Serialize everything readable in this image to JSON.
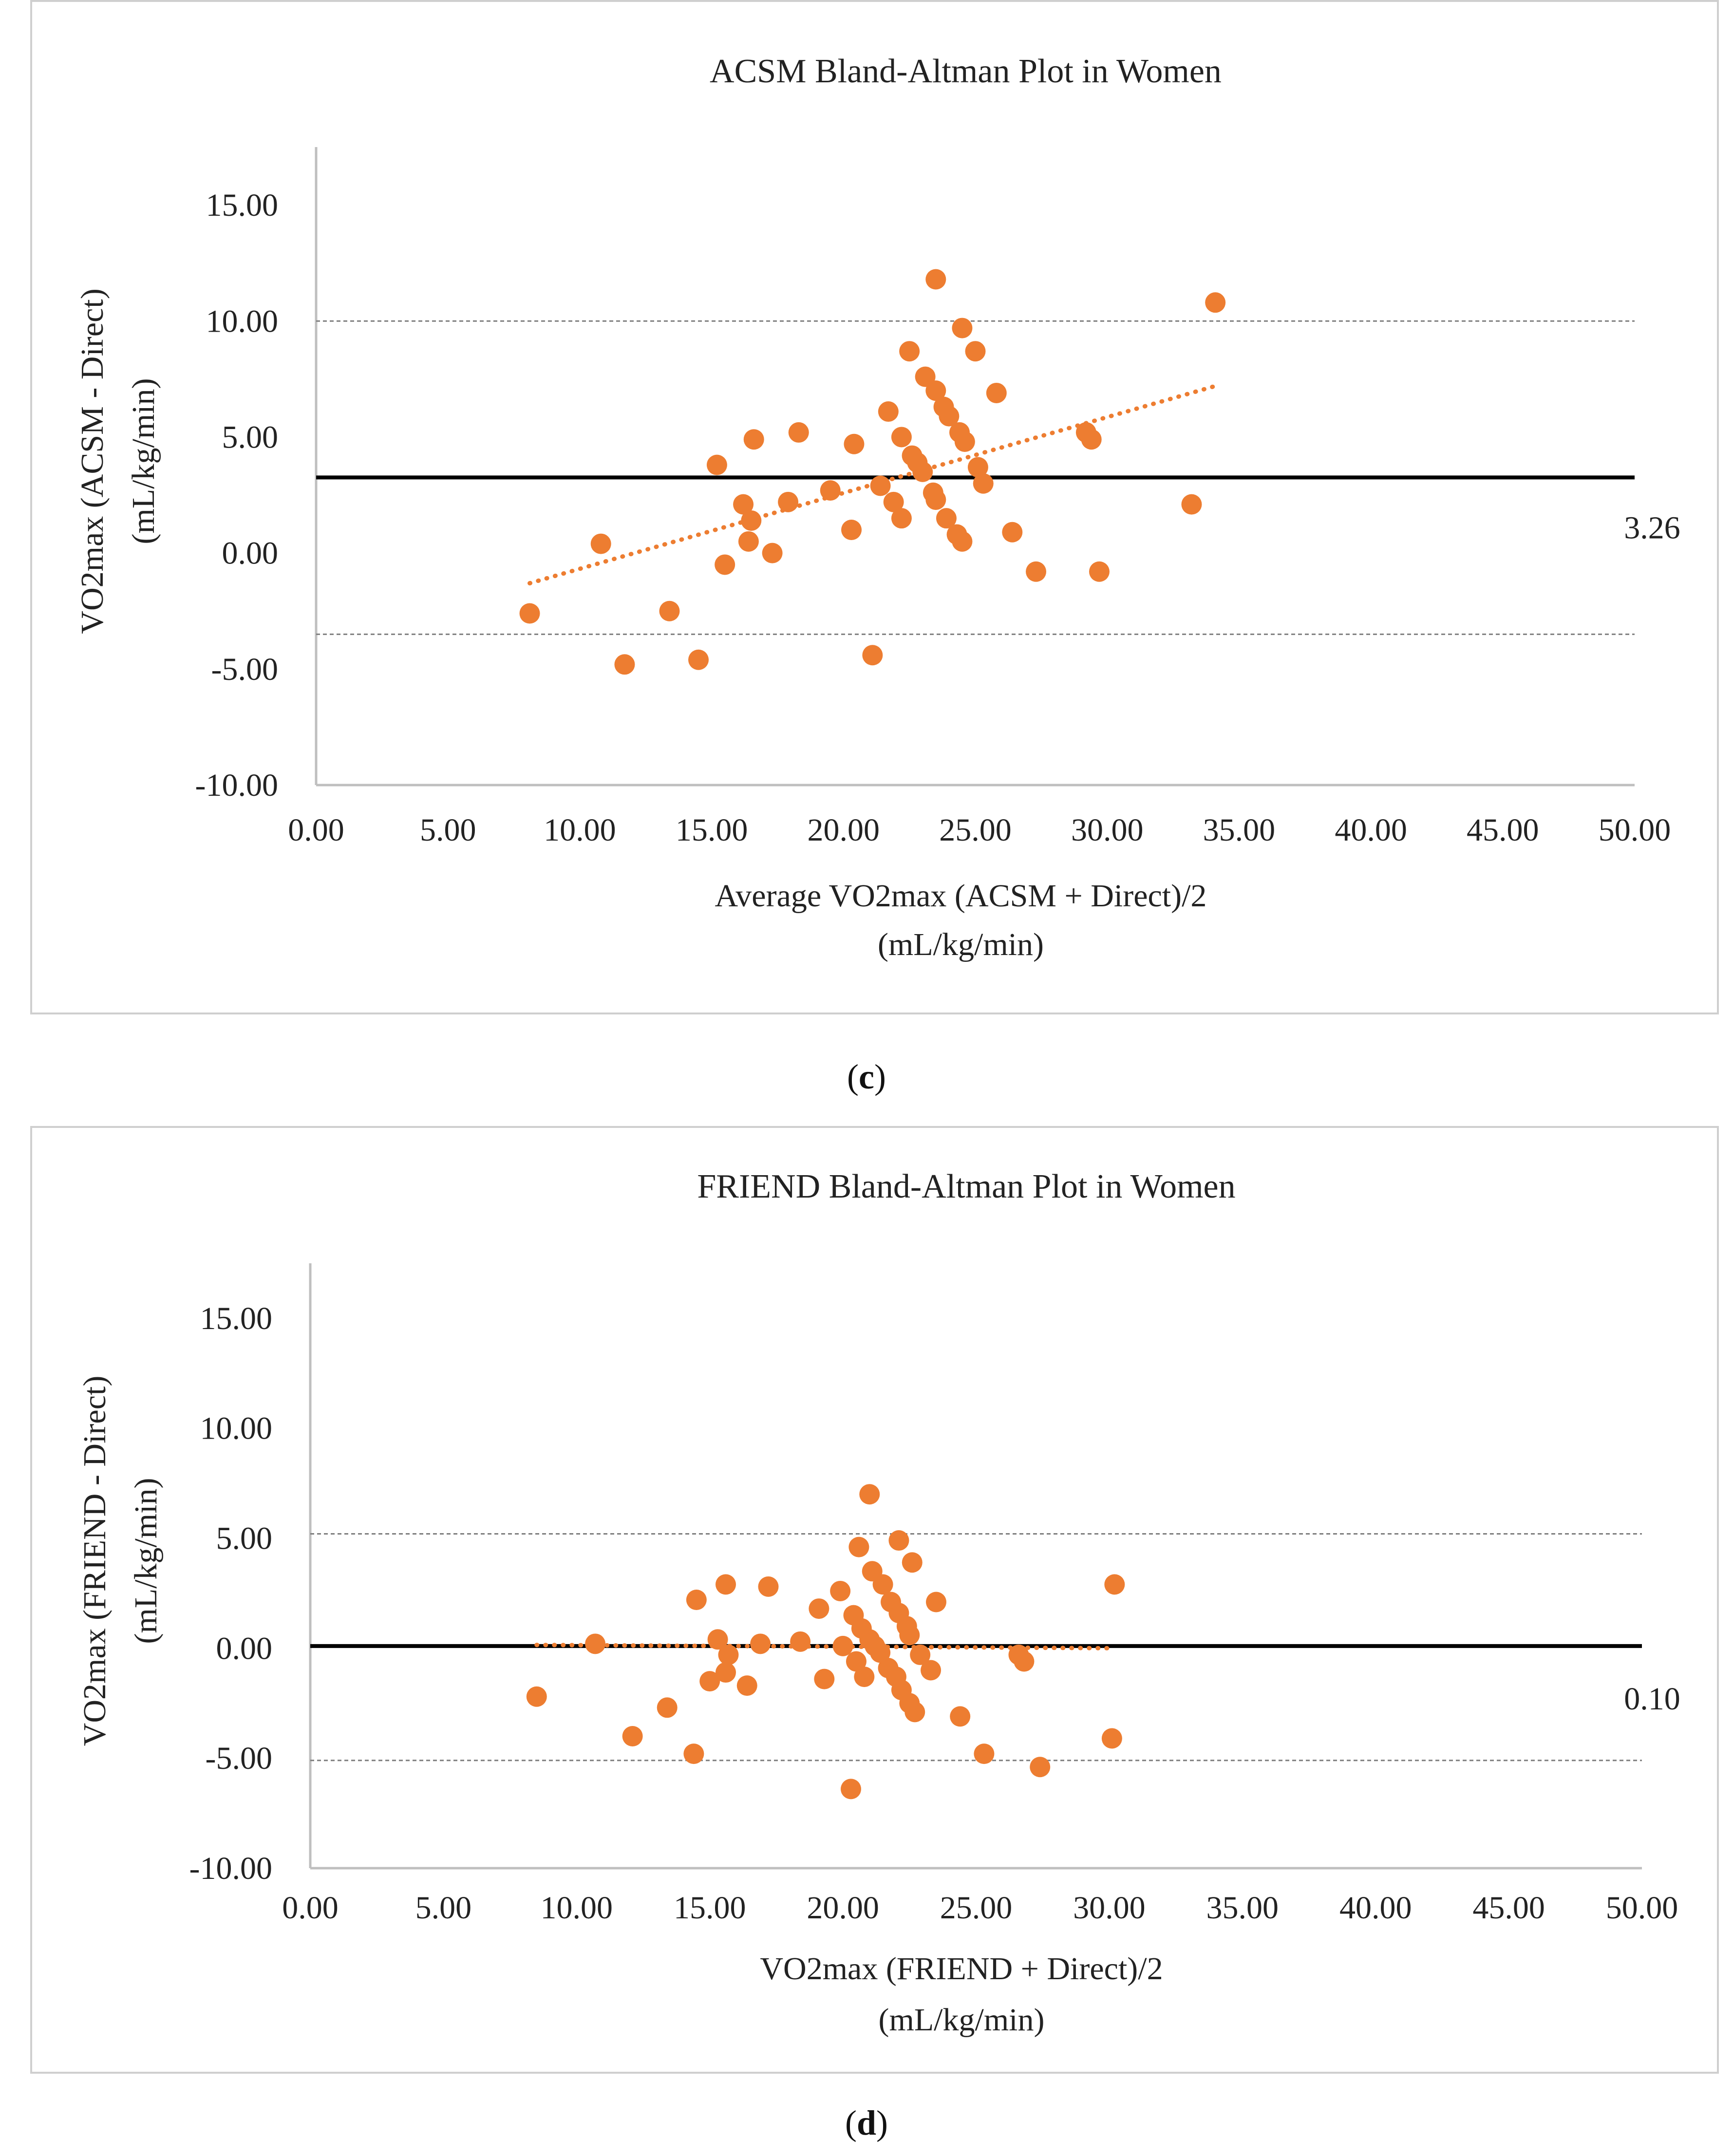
{
  "chart_data": [
    {
      "type": "scatter",
      "title": "ACSM Bland-Altman Plot in Women",
      "xlabel": [
        "Average VO2max (ACSM + Direct)/2",
        "(mL/kg/min)"
      ],
      "ylabel": [
        "VO2max  (ACSM - Direct)",
        "(mL/kg/min)"
      ],
      "xlim": [
        0,
        50
      ],
      "ylim": [
        -10,
        17.5
      ],
      "x_ticks": [
        "0.00",
        "5.00",
        "10.00",
        "15.00",
        "20.00",
        "25.00",
        "30.00",
        "35.00",
        "40.00",
        "45.00",
        "50.00"
      ],
      "y_ticks": [
        "-10.00",
        "-5.00",
        "0.00",
        "5.00",
        "10.00",
        "15.00"
      ],
      "y_tick_values": [
        -10,
        -5,
        0,
        5,
        10,
        15
      ],
      "x_tick_values": [
        0,
        5,
        10,
        15,
        20,
        25,
        30,
        35,
        40,
        45,
        50
      ],
      "mean_difference": 3.26,
      "mean_label": "3.26",
      "upper_limit": 10.0,
      "lower_limit": -3.5,
      "trendline": {
        "x": [
          8.1,
          34.1
        ],
        "y": [
          -1.3,
          7.2
        ]
      },
      "points": [
        [
          8.1,
          -2.6
        ],
        [
          10.8,
          0.4
        ],
        [
          11.7,
          -4.8
        ],
        [
          13.4,
          -2.5
        ],
        [
          14.5,
          -4.6
        ],
        [
          15.2,
          3.8
        ],
        [
          15.5,
          -0.5
        ],
        [
          16.2,
          2.1
        ],
        [
          16.4,
          0.5
        ],
        [
          16.5,
          1.4
        ],
        [
          16.6,
          4.9
        ],
        [
          17.3,
          0.0
        ],
        [
          17.9,
          2.2
        ],
        [
          18.3,
          5.2
        ],
        [
          19.5,
          2.7
        ],
        [
          20.3,
          1.0
        ],
        [
          20.4,
          4.7
        ],
        [
          21.1,
          -4.4
        ],
        [
          21.4,
          2.9
        ],
        [
          21.7,
          6.1
        ],
        [
          21.9,
          2.2
        ],
        [
          22.2,
          1.5
        ],
        [
          22.2,
          5.0
        ],
        [
          22.5,
          8.7
        ],
        [
          22.6,
          4.2
        ],
        [
          22.8,
          3.9
        ],
        [
          23.0,
          3.5
        ],
        [
          23.1,
          7.6
        ],
        [
          23.4,
          2.6
        ],
        [
          23.5,
          2.3
        ],
        [
          23.5,
          7.0
        ],
        [
          23.5,
          11.8
        ],
        [
          23.8,
          6.3
        ],
        [
          23.9,
          1.5
        ],
        [
          24.0,
          5.9
        ],
        [
          24.3,
          0.8
        ],
        [
          24.4,
          5.2
        ],
        [
          24.5,
          0.5
        ],
        [
          24.5,
          9.7
        ],
        [
          24.6,
          4.8
        ],
        [
          25.0,
          8.7
        ],
        [
          25.1,
          3.7
        ],
        [
          25.3,
          3.0
        ],
        [
          25.8,
          6.9
        ],
        [
          26.4,
          0.9
        ],
        [
          27.3,
          -0.8
        ],
        [
          29.2,
          5.2
        ],
        [
          29.4,
          4.9
        ],
        [
          29.7,
          -0.8
        ],
        [
          33.2,
          2.1
        ],
        [
          34.1,
          10.8
        ]
      ],
      "colors": {
        "points": "#ED7D31",
        "mean": "#000000",
        "limits": "#7f7f7f",
        "axis": "#bfbfbf"
      }
    },
    {
      "type": "scatter",
      "title": "FRIEND Bland-Altman Plot in Women",
      "xlabel": [
        "VO2max (FRIEND + Direct)/2",
        "(mL/kg/min)"
      ],
      "ylabel": [
        "VO2max  (FRIEND - Direct)",
        "(mL/kg/min)"
      ],
      "xlim": [
        0,
        50
      ],
      "ylim": [
        -10,
        17.5
      ],
      "x_ticks": [
        "0.00",
        "5.00",
        "10.00",
        "15.00",
        "20.00",
        "25.00",
        "30.00",
        "35.00",
        "40.00",
        "45.00",
        "50.00"
      ],
      "y_ticks": [
        "-10.00",
        "-5.00",
        "0.00",
        "5.00",
        "10.00",
        "15.00"
      ],
      "y_tick_values": [
        -10,
        -5,
        0,
        5,
        10,
        15
      ],
      "x_tick_values": [
        0,
        5,
        10,
        15,
        20,
        25,
        30,
        35,
        40,
        45,
        50
      ],
      "mean_difference": 0.1,
      "mean_label": "0.10",
      "upper_limit": 5.2,
      "lower_limit": -5.1,
      "trendline": {
        "x": [
          8.5,
          30.1
        ],
        "y": [
          0.15,
          0.0
        ]
      },
      "points": [
        [
          8.5,
          -2.2
        ],
        [
          10.7,
          0.2
        ],
        [
          12.1,
          -4.0
        ],
        [
          13.4,
          -2.7
        ],
        [
          14.4,
          -4.8
        ],
        [
          14.5,
          2.2
        ],
        [
          15.0,
          -1.5
        ],
        [
          15.3,
          0.4
        ],
        [
          15.6,
          2.9
        ],
        [
          15.6,
          -1.1
        ],
        [
          15.7,
          -0.3
        ],
        [
          16.4,
          -1.7
        ],
        [
          16.9,
          0.2
        ],
        [
          17.2,
          2.8
        ],
        [
          18.4,
          0.3
        ],
        [
          19.1,
          1.8
        ],
        [
          19.3,
          -1.4
        ],
        [
          19.9,
          2.6
        ],
        [
          20.0,
          0.1
        ],
        [
          20.3,
          -6.4
        ],
        [
          20.4,
          1.5
        ],
        [
          20.5,
          -0.6
        ],
        [
          20.6,
          4.6
        ],
        [
          20.7,
          0.9
        ],
        [
          20.8,
          -1.3
        ],
        [
          21.0,
          7.0
        ],
        [
          21.0,
          0.4
        ],
        [
          21.1,
          3.5
        ],
        [
          21.2,
          0.1
        ],
        [
          21.4,
          -0.2
        ],
        [
          21.5,
          2.9
        ],
        [
          21.7,
          -0.9
        ],
        [
          21.8,
          2.1
        ],
        [
          22.0,
          -1.3
        ],
        [
          22.1,
          1.6
        ],
        [
          22.1,
          4.9
        ],
        [
          22.2,
          -1.9
        ],
        [
          22.4,
          1.0
        ],
        [
          22.5,
          0.6
        ],
        [
          22.5,
          -2.5
        ],
        [
          22.6,
          3.9
        ],
        [
          22.7,
          -2.9
        ],
        [
          22.9,
          -0.3
        ],
        [
          23.3,
          -1.0
        ],
        [
          23.5,
          2.1
        ],
        [
          24.4,
          -3.1
        ],
        [
          25.3,
          -4.8
        ],
        [
          26.6,
          -0.3
        ],
        [
          26.8,
          -0.6
        ],
        [
          27.4,
          -5.4
        ],
        [
          30.1,
          -4.1
        ],
        [
          30.2,
          2.9
        ]
      ],
      "colors": {
        "points": "#ED7D31",
        "mean": "#000000",
        "limits": "#7f7f7f",
        "axis": "#bfbfbf"
      }
    }
  ],
  "captions": {
    "c": {
      "open": "(",
      "letter": "c",
      "close": ")"
    },
    "d": {
      "open": "(",
      "letter": "d",
      "close": ")"
    }
  }
}
